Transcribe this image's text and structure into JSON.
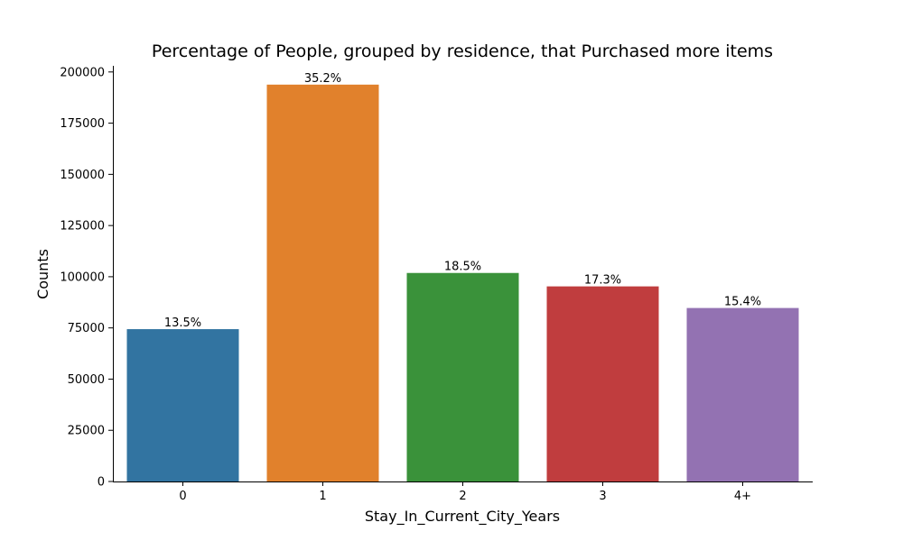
{
  "chart_data": {
    "type": "bar",
    "title": "Percentage of People, grouped by residence, that Purchased more items",
    "xlabel": "Stay_In_Current_City_Years",
    "ylabel": "Counts",
    "categories": [
      "0",
      "1",
      "2",
      "3",
      "4+"
    ],
    "values": [
      74398,
      193821,
      101838,
      95285,
      84726
    ],
    "data_labels": [
      "13.5%",
      "35.2%",
      "18.5%",
      "17.3%",
      "15.4%"
    ],
    "colors": [
      "#3274a1",
      "#e1812c",
      "#3a923a",
      "#c03d3e",
      "#9372b2"
    ],
    "ylim": [
      0,
      203000
    ],
    "yticks": [
      0,
      25000,
      50000,
      75000,
      100000,
      125000,
      150000,
      175000,
      200000
    ],
    "grid": false,
    "legend": "none"
  }
}
